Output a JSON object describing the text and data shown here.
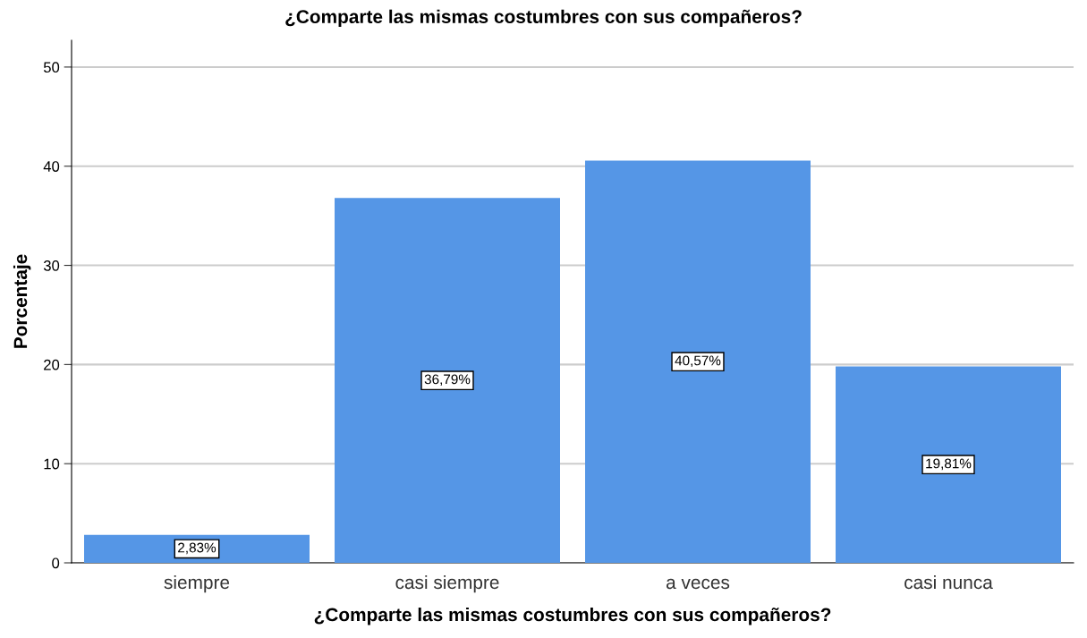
{
  "chart_data": {
    "type": "bar",
    "title": "¿Comparte las mismas costumbres con sus compañeros?",
    "xlabel": "¿Comparte las mismas costumbres con sus compañeros?",
    "ylabel": "Porcentaje",
    "categories": [
      "siempre",
      "casi siempre",
      "a veces",
      "casi nunca"
    ],
    "values": [
      2.83,
      36.79,
      40.57,
      19.81
    ],
    "value_labels": [
      "2,83%",
      "36,79%",
      "40,57%",
      "19,81%"
    ],
    "color": "#5596e6",
    "ylim": [
      0,
      52.7
    ],
    "yticks": [
      0,
      10,
      20,
      30,
      40,
      50
    ],
    "grid": "y"
  }
}
